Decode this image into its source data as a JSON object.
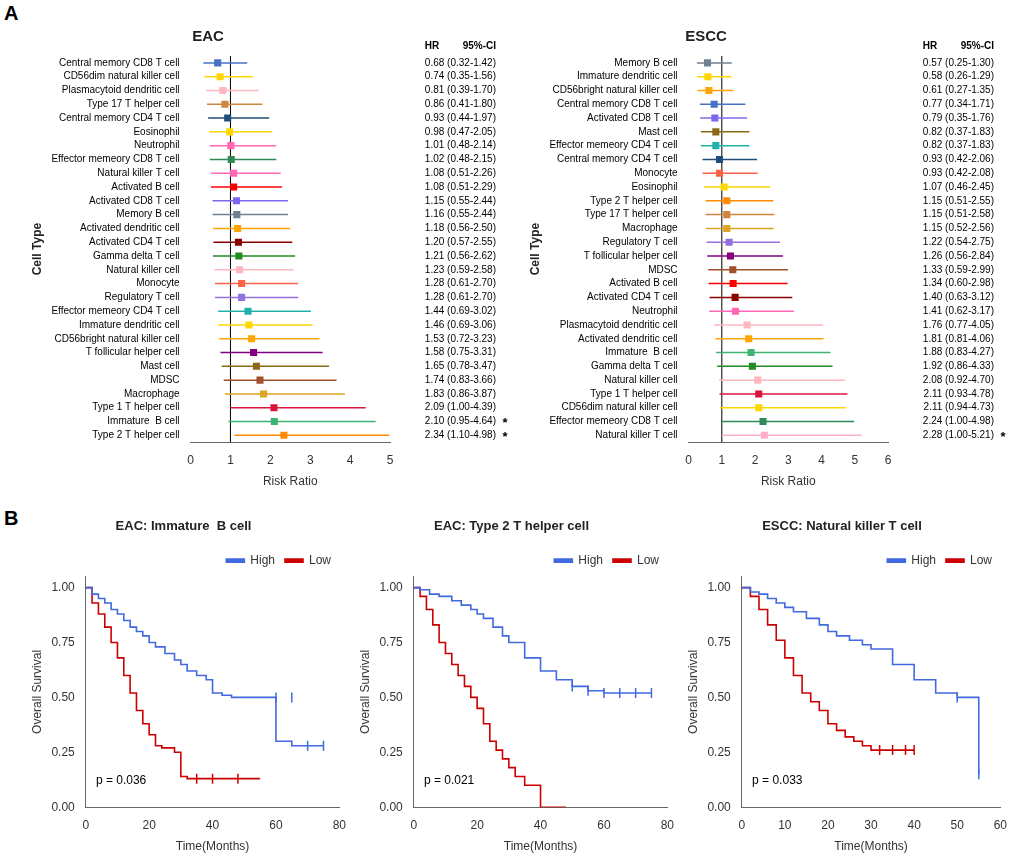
{
  "chart_data": [
    {
      "type": "forest",
      "title": "EAC",
      "panel_label": "A",
      "xlabel": "Risk Ratio",
      "ylabel": "Cell Type",
      "value_headers": [
        "HR",
        "95%-CI"
      ],
      "categories": [
        "Central memory CD8 T cell",
        "CD56dim natural killer cell",
        "Plasmacytoid dendritic cell",
        "Type 17 T helper cell",
        "Central memory CD4 T cell",
        "Eosinophil",
        "Neutrophil",
        "Effector memeory CD8 T cell",
        "Natural killer T cell",
        "Activated B cell",
        "Activated CD8 T cell",
        "Memory B cell",
        "Activated dendritic cell",
        "Activated CD4 T cell",
        "Gamma delta T cell",
        "Natural killer cell",
        "Monocyte",
        "Regulatory T cell",
        "Effector memeory CD4 T cell",
        "Immature dendritic cell",
        "CD56bright natural killer cell",
        "T follicular helper cell",
        "Mast cell",
        "MDSC",
        "Macrophage",
        "Type 1 T helper cell",
        "Immature  B cell",
        "Type 2 T helper cell"
      ],
      "values": [
        0.68,
        0.74,
        0.81,
        0.86,
        0.93,
        0.98,
        1.01,
        1.02,
        1.08,
        1.08,
        1.15,
        1.16,
        1.18,
        1.2,
        1.21,
        1.23,
        1.28,
        1.28,
        1.44,
        1.46,
        1.53,
        1.58,
        1.65,
        1.74,
        1.83,
        2.09,
        2.1,
        2.34
      ],
      "ci_low": [
        0.32,
        0.35,
        0.39,
        0.41,
        0.44,
        0.47,
        0.48,
        0.48,
        0.51,
        0.51,
        0.55,
        0.55,
        0.56,
        0.57,
        0.56,
        0.59,
        0.61,
        0.61,
        0.69,
        0.69,
        0.72,
        0.75,
        0.78,
        0.83,
        0.86,
        1.0,
        0.95,
        1.1
      ],
      "ci_high": [
        1.42,
        1.56,
        1.7,
        1.8,
        1.97,
        2.05,
        2.14,
        2.15,
        2.26,
        2.29,
        2.44,
        2.44,
        2.5,
        2.55,
        2.62,
        2.58,
        2.7,
        2.7,
        3.02,
        3.06,
        3.23,
        3.31,
        3.47,
        3.66,
        3.87,
        4.39,
        4.64,
        4.98
      ],
      "value_labels": [
        "0.68 (0.32-1.42)",
        "0.74 (0.35-1.56)",
        "0.81 (0.39-1.70)",
        "0.86 (0.41-1.80)",
        "0.93 (0.44-1.97)",
        "0.98 (0.47-2.05)",
        "1.01 (0.48-2.14)",
        "1.02 (0.48-2.15)",
        "1.08 (0.51-2.26)",
        "1.08 (0.51-2.29)",
        "1.15 (0.55-2.44)",
        "1.16 (0.55-2.44)",
        "1.18 (0.56-2.50)",
        "1.20 (0.57-2.55)",
        "1.21 (0.56-2.62)",
        "1.23 (0.59-2.58)",
        "1.28 (0.61-2.70)",
        "1.28 (0.61-2.70)",
        "1.44 (0.69-3.02)",
        "1.46 (0.69-3.06)",
        "1.53 (0.72-3.23)",
        "1.58 (0.75-3.31)",
        "1.65 (0.78-3.47)",
        "1.74 (0.83-3.66)",
        "1.83 (0.86-3.87)",
        "2.09 (1.00-4.39)",
        "2.10 (0.95-4.64)",
        "2.34 (1.10-4.98)"
      ],
      "colors": [
        "#4472C4",
        "#FFD700",
        "#FFB6C1",
        "#CD853F",
        "#1F4E79",
        "#FFD700",
        "#FF69B4",
        "#2E8B57",
        "#FF69B4",
        "#FF0000",
        "#7B68EE",
        "#708090",
        "#FFA500",
        "#8B0000",
        "#228B22",
        "#FFB6C1",
        "#FF6347",
        "#9370DB",
        "#20B2AA",
        "#FFD700",
        "#FFA500",
        "#800080",
        "#8B6914",
        "#A0522D",
        "#DAA520",
        "#DC143C",
        "#3CB371",
        "#FF8C00"
      ],
      "annotations": [
        {
          "category": "Immature  B cell",
          "text": "*"
        },
        {
          "category": "Type 2 T helper cell",
          "text": "*"
        }
      ],
      "reference_line": 1.0,
      "xlim": [
        0,
        5.0
      ],
      "xticks": [
        0,
        1,
        2,
        3,
        4,
        5
      ],
      "grid": false
    },
    {
      "type": "forest",
      "title": "ESCC",
      "xlabel": "Risk Ratio",
      "ylabel": "Cell Type",
      "value_headers": [
        "HR",
        "95%-CI"
      ],
      "categories": [
        "Memory B cell",
        "Immature dendritic cell",
        "CD56bright natural killer cell",
        "Central memory CD8 T cell",
        "Activated CD8 T cell",
        "Mast cell",
        "Effector memeory CD4 T cell",
        "Central memory CD4 T cell",
        "Monocyte",
        "Eosinophil",
        "Type 2 T helper cell",
        "Type 17 T helper cell",
        "Macrophage",
        "Regulatory T cell",
        "T follicular helper cell",
        "MDSC",
        "Activated B cell",
        "Activated CD4 T cell",
        "Neutrophil",
        "Plasmacytoid dendritic cell",
        "Activated dendritic cell",
        "Immature  B cell",
        "Gamma delta T cell",
        "Natural killer cell",
        "Type 1 T helper cell",
        "CD56dim natural killer cell",
        "Effector memeory CD8 T cell",
        "Natural killer T cell"
      ],
      "values": [
        0.57,
        0.58,
        0.61,
        0.77,
        0.79,
        0.82,
        0.82,
        0.93,
        0.93,
        1.07,
        1.15,
        1.15,
        1.15,
        1.22,
        1.26,
        1.33,
        1.34,
        1.4,
        1.41,
        1.76,
        1.81,
        1.88,
        1.92,
        2.08,
        2.11,
        2.11,
        2.24,
        2.28
      ],
      "ci_low": [
        0.25,
        0.26,
        0.27,
        0.34,
        0.35,
        0.37,
        0.37,
        0.42,
        0.42,
        0.46,
        0.51,
        0.51,
        0.52,
        0.54,
        0.56,
        0.59,
        0.6,
        0.63,
        0.62,
        0.77,
        0.81,
        0.83,
        0.86,
        0.92,
        0.93,
        0.94,
        1.0,
        1.0
      ],
      "ci_high": [
        1.3,
        1.29,
        1.35,
        1.71,
        1.76,
        1.83,
        1.83,
        2.06,
        2.08,
        2.45,
        2.55,
        2.58,
        2.56,
        2.75,
        2.84,
        2.99,
        2.98,
        3.12,
        3.17,
        4.05,
        4.06,
        4.27,
        4.33,
        4.7,
        4.78,
        4.73,
        4.98,
        5.21
      ],
      "value_labels": [
        "0.57 (0.25-1.30)",
        "0.58 (0.26-1.29)",
        "0.61 (0.27-1.35)",
        "0.77 (0.34-1.71)",
        "0.79 (0.35-1.76)",
        "0.82 (0.37-1.83)",
        "0.82 (0.37-1.83)",
        "0.93 (0.42-2.06)",
        "0.93 (0.42-2.08)",
        "1.07 (0.46-2.45)",
        "1.15 (0.51-2.55)",
        "1.15 (0.51-2.58)",
        "1.15 (0.52-2.56)",
        "1.22 (0.54-2.75)",
        "1.26 (0.56-2.84)",
        "1.33 (0.59-2.99)",
        "1.34 (0.60-2.98)",
        "1.40 (0.63-3.12)",
        "1.41 (0.62-3.17)",
        "1.76 (0.77-4.05)",
        "1.81 (0.81-4.06)",
        "1.88 (0.83-4.27)",
        "1.92 (0.86-4.33)",
        "2.08 (0.92-4.70)",
        "2.11 (0.93-4.78)",
        "2.11 (0.94-4.73)",
        "2.24 (1.00-4.98)",
        "2.28 (1.00-5.21)"
      ],
      "colors": [
        "#708090",
        "#FFD700",
        "#FFA500",
        "#4472C4",
        "#7B68EE",
        "#8B6914",
        "#20B2AA",
        "#1F4E79",
        "#FF6347",
        "#FFD700",
        "#FF8C00",
        "#CD853F",
        "#DAA520",
        "#9370DB",
        "#800080",
        "#A0522D",
        "#FF0000",
        "#8B0000",
        "#FF69B4",
        "#FFB6C1",
        "#FFA500",
        "#3CB371",
        "#228B22",
        "#FFB6C1",
        "#DC143C",
        "#FFD700",
        "#2E8B57",
        "#FFB0C8"
      ],
      "annotations": [
        {
          "category": "Natural killer T cell",
          "text": "*"
        }
      ],
      "reference_line": 1.0,
      "xlim": [
        0,
        6.0
      ],
      "xticks": [
        0,
        1,
        2,
        3,
        4,
        5,
        6
      ],
      "grid": false
    },
    {
      "type": "step",
      "title": "EAC: Immature  B cell",
      "panel_label": "B",
      "xlabel": "Time(Months)",
      "ylabel": "Overall Survival",
      "annotations": [
        {
          "text": "p = 0.036"
        }
      ],
      "legend": "upper right",
      "grid": false,
      "xlim": [
        0,
        80
      ],
      "xticks": [
        0,
        20,
        40,
        60,
        80
      ],
      "ylim": [
        0,
        1.05
      ],
      "yticks": [
        {
          "value": 0.0,
          "label": "0.00"
        },
        {
          "value": 0.25,
          "label": "0.25"
        },
        {
          "value": 0.5,
          "label": "0.50"
        },
        {
          "value": 0.75,
          "label": "0.75"
        },
        {
          "value": 1.0,
          "label": "1.00"
        }
      ],
      "series": [
        {
          "name": "High",
          "color": "#4169E1",
          "x": [
            0,
            2,
            4,
            6,
            8,
            10,
            12,
            14,
            16,
            18,
            20,
            22,
            25,
            28,
            30,
            32,
            35,
            38,
            40,
            43,
            46,
            50,
            55,
            60,
            65,
            70,
            75
          ],
          "values": [
            1.0,
            0.97,
            0.95,
            0.93,
            0.9,
            0.88,
            0.85,
            0.82,
            0.8,
            0.78,
            0.75,
            0.73,
            0.7,
            0.67,
            0.65,
            0.62,
            0.6,
            0.58,
            0.52,
            0.51,
            0.5,
            0.5,
            0.5,
            0.3,
            0.28,
            0.28,
            0.28
          ],
          "censor_x": [
            60,
            65,
            70,
            75
          ],
          "censor_values": [
            0.5,
            0.5,
            0.28,
            0.28
          ]
        },
        {
          "name": "Low",
          "color": "#CC0000",
          "x": [
            0,
            2,
            4,
            6,
            8,
            10,
            12,
            14,
            16,
            18,
            20,
            22,
            24,
            26,
            28,
            30,
            32,
            35,
            40,
            48,
            50,
            55
          ],
          "values": [
            1.0,
            0.93,
            0.88,
            0.82,
            0.75,
            0.68,
            0.6,
            0.52,
            0.44,
            0.38,
            0.33,
            0.28,
            0.27,
            0.27,
            0.25,
            0.14,
            0.13,
            0.13,
            0.13,
            0.13,
            0.13,
            0.13
          ],
          "censor_x": [
            35,
            40,
            48
          ],
          "censor_values": [
            0.13,
            0.13,
            0.13
          ]
        }
      ]
    },
    {
      "type": "step",
      "title": "EAC: Type 2 T helper cell",
      "xlabel": "Time(Months)",
      "ylabel": "Overall Survival",
      "annotations": [
        {
          "text": "p = 0.021"
        }
      ],
      "legend": "upper right",
      "grid": false,
      "xlim": [
        0,
        80
      ],
      "xticks": [
        0,
        20,
        40,
        60,
        80
      ],
      "ylim": [
        0,
        1.05
      ],
      "yticks": [
        {
          "value": 0.0,
          "label": "0.00"
        },
        {
          "value": 0.25,
          "label": "0.25"
        },
        {
          "value": 0.5,
          "label": "0.50"
        },
        {
          "value": 0.75,
          "label": "0.75"
        },
        {
          "value": 1.0,
          "label": "1.00"
        }
      ],
      "series": [
        {
          "name": "High",
          "color": "#4169E1",
          "x": [
            0,
            2,
            5,
            8,
            12,
            15,
            18,
            20,
            22,
            25,
            28,
            30,
            35,
            40,
            45,
            50,
            55,
            60,
            65,
            70,
            75
          ],
          "values": [
            1.0,
            0.99,
            0.97,
            0.96,
            0.94,
            0.92,
            0.9,
            0.88,
            0.86,
            0.82,
            0.78,
            0.75,
            0.68,
            0.62,
            0.58,
            0.55,
            0.53,
            0.52,
            0.52,
            0.52,
            0.52
          ],
          "censor_x": [
            50,
            55,
            60,
            65,
            70,
            75
          ],
          "censor_values": [
            0.55,
            0.53,
            0.52,
            0.52,
            0.52,
            0.52
          ]
        },
        {
          "name": "Low",
          "color": "#CC0000",
          "x": [
            0,
            2,
            4,
            6,
            8,
            10,
            12,
            14,
            16,
            18,
            20,
            22,
            24,
            26,
            28,
            30,
            32,
            35,
            38,
            40,
            45,
            48
          ],
          "values": [
            1.0,
            0.96,
            0.9,
            0.83,
            0.75,
            0.7,
            0.65,
            0.6,
            0.55,
            0.5,
            0.45,
            0.38,
            0.3,
            0.26,
            0.22,
            0.18,
            0.14,
            0.1,
            0.1,
            0.0,
            0.0,
            0.0
          ],
          "censor_x": [],
          "censor_values": []
        }
      ]
    },
    {
      "type": "step",
      "title": "ESCC: Natural killer T cell",
      "xlabel": "Time(Months)",
      "ylabel": "Overall Survival",
      "annotations": [
        {
          "text": "p = 0.033"
        }
      ],
      "legend": "upper right",
      "grid": false,
      "xlim": [
        0,
        60
      ],
      "xticks": [
        0,
        10,
        20,
        30,
        40,
        50,
        60
      ],
      "ylim": [
        0,
        1.05
      ],
      "yticks": [
        {
          "value": 0.0,
          "label": "0.00"
        },
        {
          "value": 0.25,
          "label": "0.25"
        },
        {
          "value": 0.5,
          "label": "0.50"
        },
        {
          "value": 0.75,
          "label": "0.75"
        },
        {
          "value": 1.0,
          "label": "1.00"
        }
      ],
      "series": [
        {
          "name": "High",
          "color": "#4169E1",
          "x": [
            0,
            2,
            4,
            6,
            8,
            10,
            12,
            15,
            18,
            20,
            22,
            25,
            28,
            30,
            35,
            40,
            45,
            50,
            55
          ],
          "values": [
            1.0,
            0.98,
            0.97,
            0.95,
            0.93,
            0.91,
            0.89,
            0.86,
            0.83,
            0.8,
            0.78,
            0.76,
            0.74,
            0.72,
            0.65,
            0.58,
            0.52,
            0.5,
            0.15
          ],
          "censor_x": [
            50,
            55
          ],
          "censor_values": [
            0.5,
            0.15
          ]
        },
        {
          "name": "Low",
          "color": "#CC0000",
          "x": [
            0,
            2,
            4,
            6,
            8,
            10,
            12,
            14,
            16,
            18,
            20,
            22,
            24,
            26,
            28,
            30,
            32,
            35,
            38,
            40
          ],
          "values": [
            1.0,
            0.96,
            0.9,
            0.83,
            0.76,
            0.68,
            0.6,
            0.52,
            0.48,
            0.44,
            0.38,
            0.35,
            0.32,
            0.3,
            0.28,
            0.26,
            0.26,
            0.26,
            0.26,
            0.26
          ],
          "censor_x": [
            32,
            35,
            38,
            40
          ],
          "censor_values": [
            0.26,
            0.26,
            0.26,
            0.26
          ]
        }
      ]
    }
  ]
}
